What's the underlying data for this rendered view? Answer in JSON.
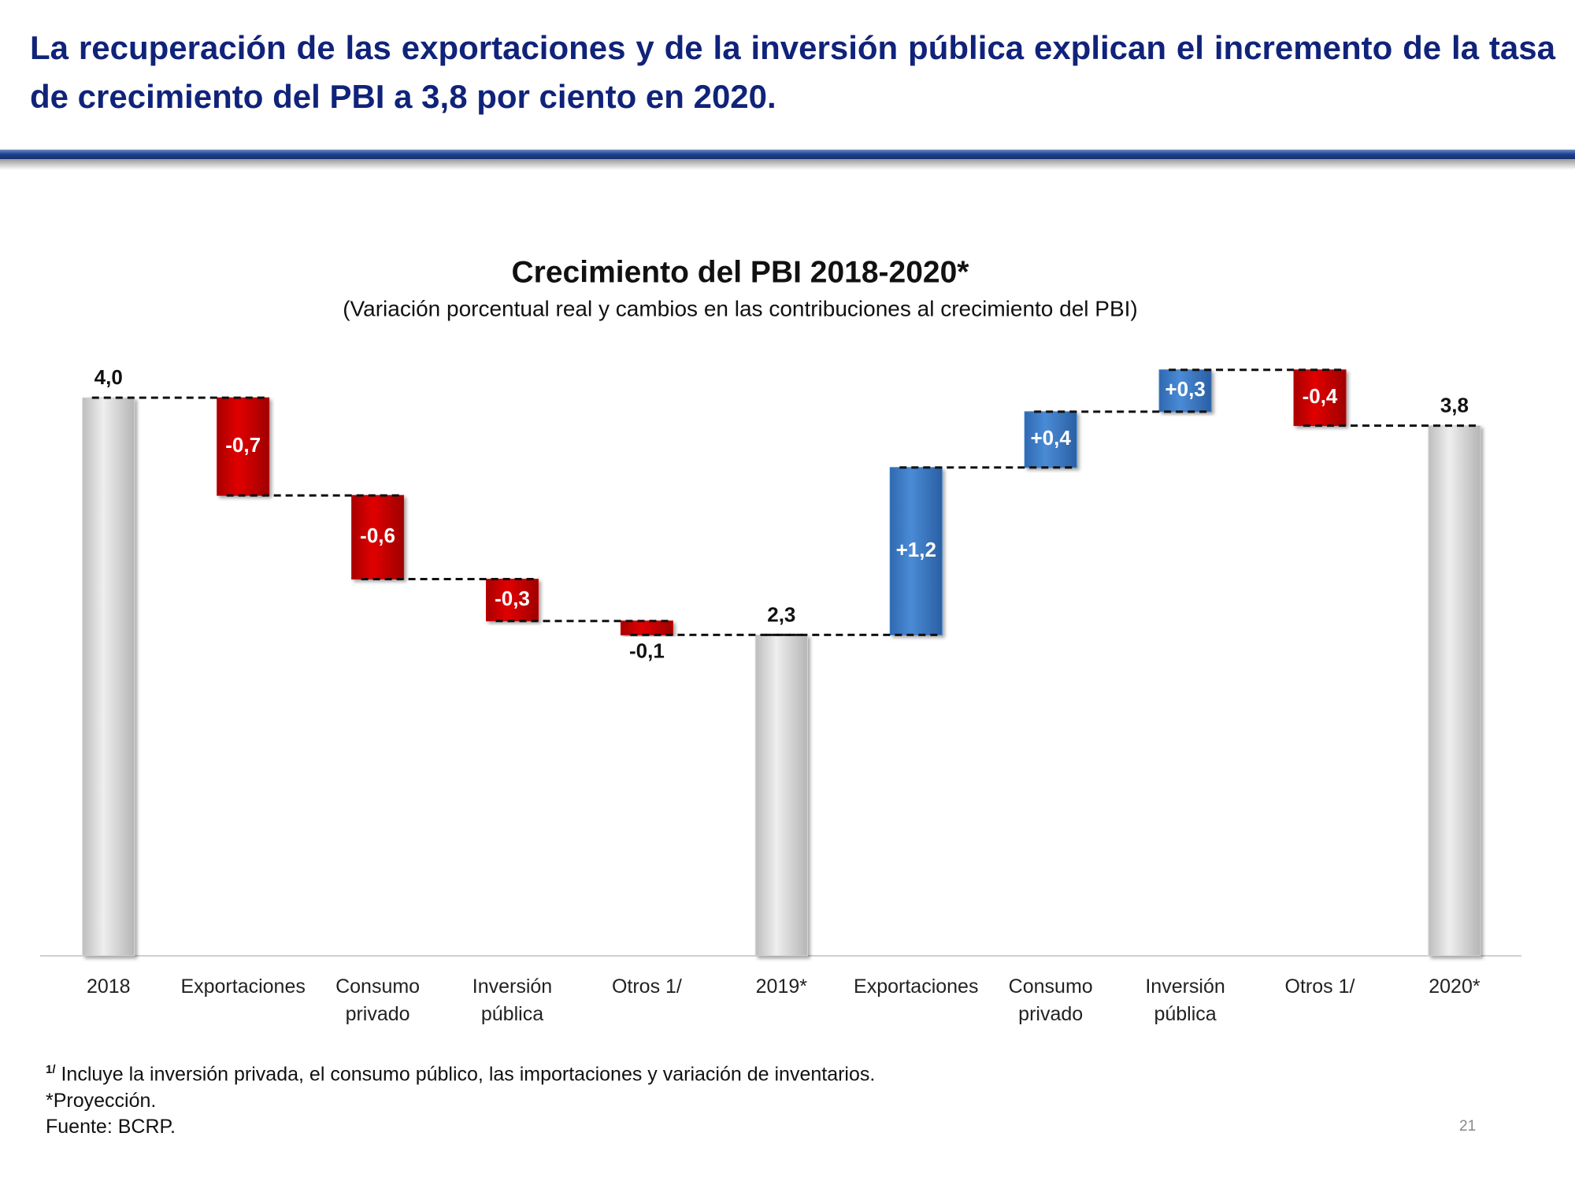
{
  "header": {
    "title": "La recuperación de las exportaciones y de la inversión pública explican el incremento de la tasa de crecimiento del PBI a 3,8 por ciento en 2020."
  },
  "chart_data": {
    "type": "waterfall",
    "title": "Crecimiento del PBI 2018-2020*",
    "subtitle": "(Variación porcentual real y cambios en las contribuciones al crecimiento del PBI)",
    "categories": [
      "2018",
      "Exportaciones",
      "Consumo\nprivado",
      "Inversión\npública",
      "Otros 1/",
      "2019*",
      "Exportaciones",
      "Consumo\nprivado",
      "Inversión\npública",
      "Otros 1/",
      "2020*"
    ],
    "measure": [
      "total",
      "relative",
      "relative",
      "relative",
      "relative",
      "total",
      "relative",
      "relative",
      "relative",
      "relative",
      "total"
    ],
    "values": [
      4.0,
      -0.7,
      -0.6,
      -0.3,
      -0.1,
      2.3,
      1.2,
      0.4,
      0.3,
      -0.4,
      3.8
    ],
    "value_labels": [
      "4,0",
      "-0,7",
      "-0,6",
      "-0,3",
      "-0,1",
      "2,3",
      "+1,2",
      "+0,4",
      "+0,3",
      "-0,4",
      "3,8"
    ],
    "colors": {
      "total": "#d6d6d6",
      "increase": "#3b7dc8",
      "decrease": "#c80000"
    },
    "ylim": [
      0,
      4.3
    ]
  },
  "footnotes": {
    "note1_marker": "1/",
    "note1": "Incluye la inversión privada, el consumo público, las importaciones y variación de inventarios.",
    "note2": "*Proyección.",
    "source": "Fuente: BCRP."
  },
  "page_number": "21"
}
